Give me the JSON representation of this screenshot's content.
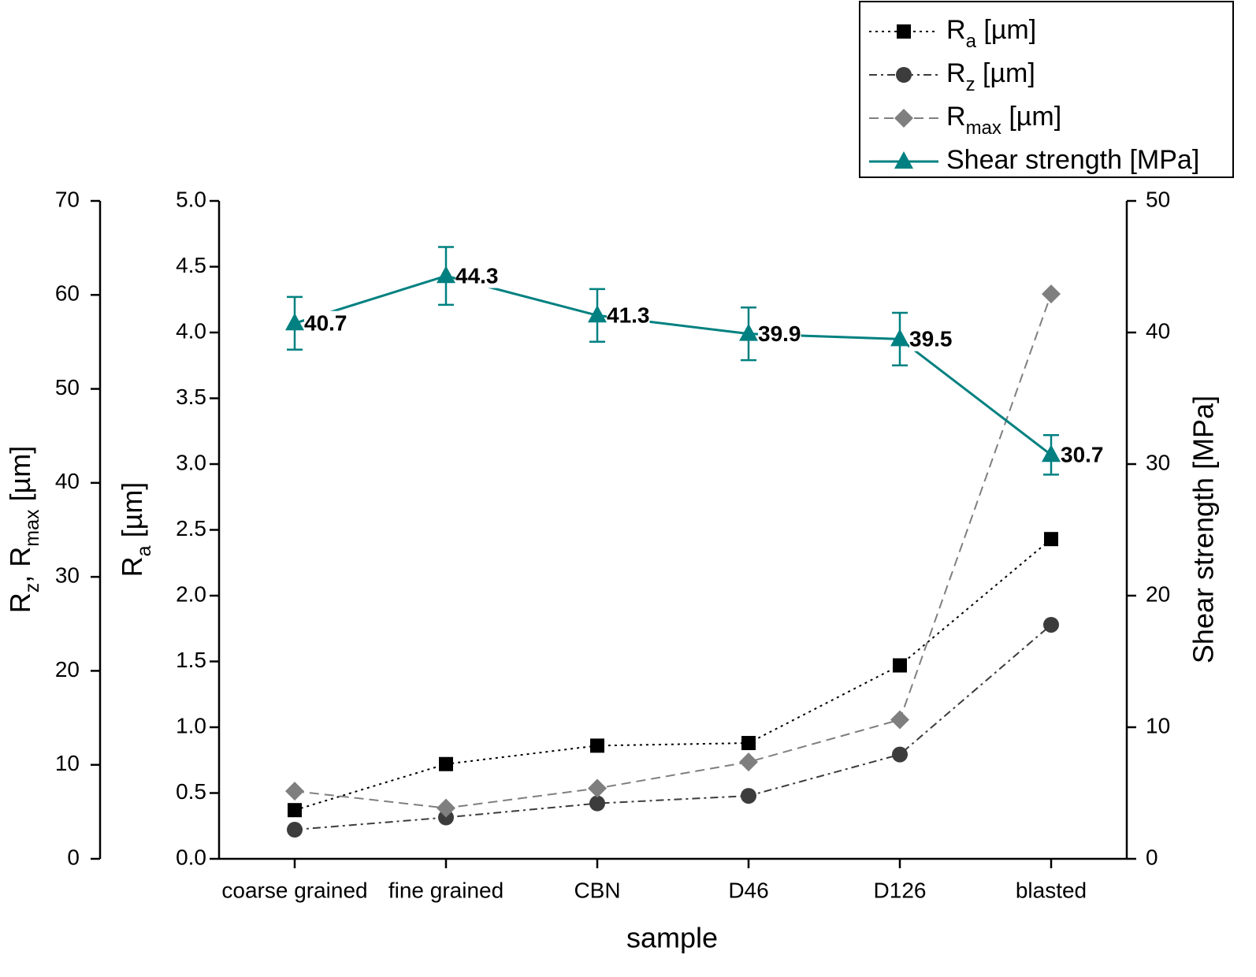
{
  "chart_data": {
    "type": "line",
    "x_label": "sample",
    "y_label": "Ra [µm]",
    "y2_label": "Rz, Rmax [µm]",
    "y3_label": "Shear strength [MPa]",
    "categories": [
      "coarse grained",
      "fine grained",
      "CBN",
      "D46",
      "D126",
      "blasted"
    ],
    "ylim": [
      0,
      5
    ],
    "yticks": [
      {
        "value": 0,
        "label": "0.0"
      },
      0.5,
      {
        "value": 1,
        "label": "1.0"
      },
      1.5,
      {
        "value": 2,
        "label": "2.0"
      },
      2.5,
      {
        "value": 3,
        "label": "3.0"
      },
      3.5,
      {
        "value": 4,
        "label": "4.0"
      },
      4.5,
      {
        "value": 5,
        "label": "5.0"
      }
    ],
    "y2lim": [
      0,
      70
    ],
    "y2ticks": [
      0,
      10,
      20,
      30,
      40,
      50,
      60,
      70
    ],
    "y3lim": [
      0,
      50
    ],
    "y3ticks": [
      0,
      10,
      20,
      30,
      40,
      50
    ],
    "legend": "top-right",
    "series": [
      {
        "name": "Ra [µm]",
        "color": "#000000",
        "marker": "square",
        "linestyle": "dotted",
        "axis": "y",
        "values": [
          0.37,
          0.72,
          0.86,
          0.88,
          1.47,
          2.43
        ]
      },
      {
        "name": "Rz [µm]",
        "color": "#3c3c3c",
        "marker": "circle",
        "linestyle": "dashdot",
        "axis": "y2",
        "values": [
          3.1,
          4.4,
          5.9,
          6.7,
          11.1,
          24.9
        ]
      },
      {
        "name": "Rmax [µm]",
        "color": "#7f7f7f",
        "marker": "diamond",
        "linestyle": "dashed",
        "axis": "y2",
        "values": [
          7.2,
          5.4,
          7.5,
          10.3,
          14.8,
          60.1
        ]
      },
      {
        "name": "Shear strength [MPa]",
        "color": "#008080",
        "marker": "triangle",
        "linestyle": "solid",
        "axis": "y3",
        "values": [
          40.7,
          44.3,
          41.3,
          39.9,
          39.5,
          30.7
        ],
        "errors": [
          2.0,
          2.2,
          2.0,
          2.0,
          2.0,
          1.5
        ],
        "labels": true
      }
    ]
  }
}
